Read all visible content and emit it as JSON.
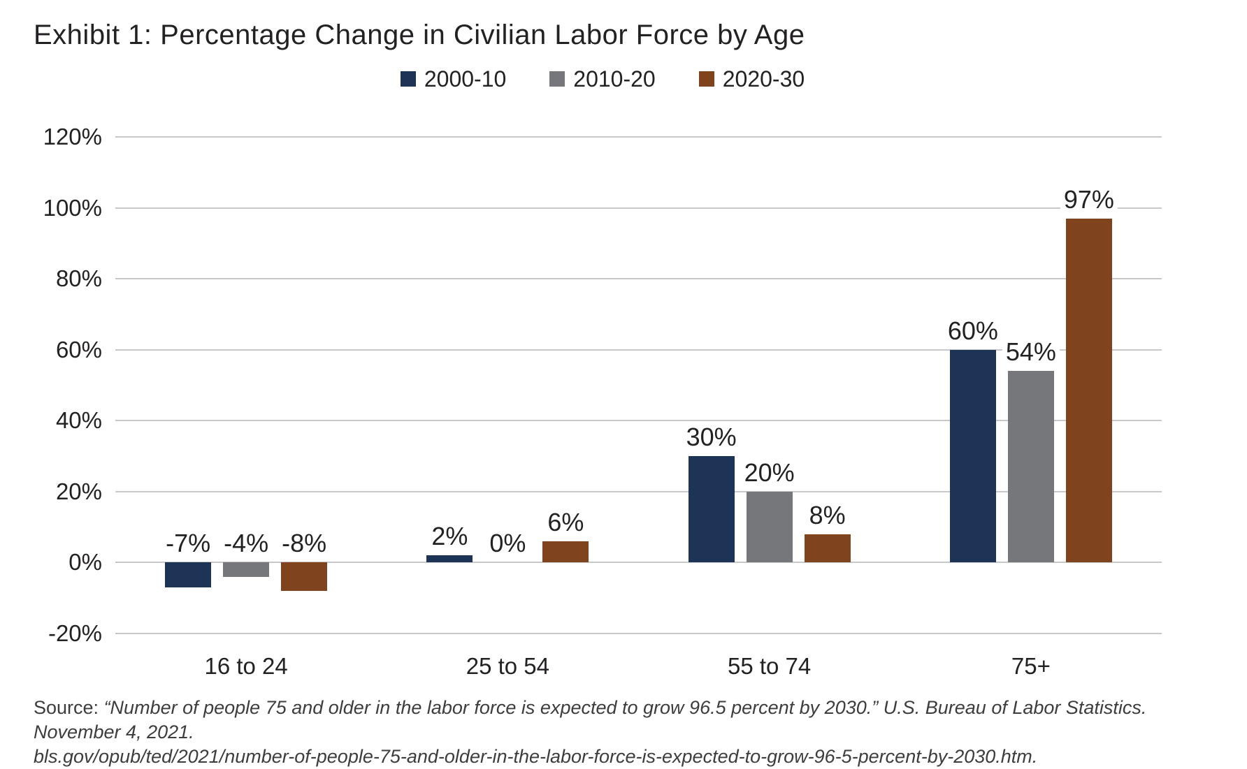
{
  "title": "Exhibit 1: Percentage Change in Civilian Labor Force by Age",
  "legend": [
    {
      "label": "2000-10",
      "color": "#1d3456"
    },
    {
      "label": "2010-20",
      "color": "#75777a"
    },
    {
      "label": "2020-30",
      "color": "#7f441e"
    }
  ],
  "source": {
    "prefix": "Source: ",
    "line1_italic": "“Number of people 75 and older in the labor force is expected to grow 96.5 percent by 2030.” U.S. Bureau of Labor Statistics. November 4, 2021.",
    "line2_italic": "bls.gov/opub/ted/2021/number-of-people-75-and-older-in-the-labor-force-is-expected-to-grow-96-5-percent-by-2030.htm."
  },
  "chart_data": {
    "type": "bar",
    "title": "Exhibit 1: Percentage Change in Civilian Labor Force by Age",
    "categories": [
      "16 to 24",
      "25 to 54",
      "55 to 74",
      "75+"
    ],
    "series": [
      {
        "name": "2000-10",
        "color": "#1d3456",
        "values": [
          -7,
          2,
          30,
          60
        ],
        "labels": [
          "-7%",
          "2%",
          "30%",
          "60%"
        ]
      },
      {
        "name": "2010-20",
        "color": "#75777a",
        "values": [
          -4,
          0,
          20,
          54
        ],
        "labels": [
          "-4%",
          "0%",
          "20%",
          "54%"
        ]
      },
      {
        "name": "2020-30",
        "color": "#7f441e",
        "values": [
          -8,
          6,
          8,
          97
        ],
        "labels": [
          "-8%",
          "6%",
          "8%",
          "97%"
        ]
      }
    ],
    "y_axis": {
      "min": -20,
      "max": 120,
      "step": 20,
      "tick_labels": [
        "120%",
        "100%",
        "80%",
        "60%",
        "40%",
        "20%",
        "0%",
        "-20%"
      ]
    },
    "grid": true,
    "legend_position": "top",
    "gridline_color": "#c7c8ca",
    "text_color": "#242124",
    "xlabel": "",
    "ylabel": ""
  }
}
